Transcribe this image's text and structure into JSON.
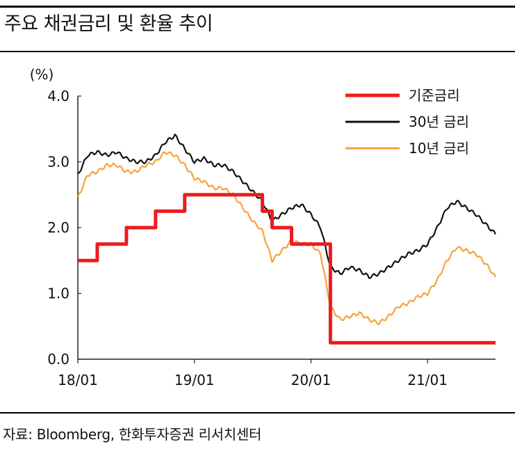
{
  "header": {
    "title": "주요 채권금리 및 환율 추이"
  },
  "footer": {
    "source": "자료: Bloomberg, 한화투자증권 리서치센터"
  },
  "colors": {
    "base_rate": "#ee1c1c",
    "y30": "#111111",
    "y10": "#f7a23c"
  },
  "chart_data": {
    "type": "line",
    "title": "",
    "ylabel": "(%)",
    "ylim": [
      0,
      4
    ],
    "yticks": [
      "0.0",
      "1.0",
      "2.0",
      "3.0",
      "4.0"
    ],
    "xlim": [
      "2018-01",
      "2021-08"
    ],
    "xticks": [
      {
        "label": "18/01",
        "date": "2018-01"
      },
      {
        "label": "19/01",
        "date": "2019-01"
      },
      {
        "label": "20/01",
        "date": "2020-01"
      },
      {
        "label": "21/01",
        "date": "2021-01"
      }
    ],
    "legend_position": "top-right",
    "series": [
      {
        "name": "기준금리",
        "style": "step",
        "points": [
          [
            "2018-01",
            1.5
          ],
          [
            "2018-03",
            1.75
          ],
          [
            "2018-06",
            2.0
          ],
          [
            "2018-09",
            2.25
          ],
          [
            "2018-12",
            2.5
          ],
          [
            "2019-08",
            2.25
          ],
          [
            "2019-09",
            2.0
          ],
          [
            "2019-11",
            1.75
          ],
          [
            "2020-03",
            0.25
          ],
          [
            "2021-08",
            0.25
          ]
        ]
      },
      {
        "name": "30년 금리",
        "style": "line",
        "points": [
          [
            "2018-01",
            2.8
          ],
          [
            "2018-02",
            3.1
          ],
          [
            "2018-03",
            3.15
          ],
          [
            "2018-04",
            3.1
          ],
          [
            "2018-05",
            3.15
          ],
          [
            "2018-06",
            3.05
          ],
          [
            "2018-07",
            3.0
          ],
          [
            "2018-08",
            3.0
          ],
          [
            "2018-09",
            3.1
          ],
          [
            "2018-10",
            3.3
          ],
          [
            "2018-11",
            3.4
          ],
          [
            "2018-12",
            3.2
          ],
          [
            "2019-01",
            3.0
          ],
          [
            "2019-02",
            3.05
          ],
          [
            "2019-03",
            2.95
          ],
          [
            "2019-04",
            2.95
          ],
          [
            "2019-05",
            2.85
          ],
          [
            "2019-06",
            2.7
          ],
          [
            "2019-07",
            2.55
          ],
          [
            "2019-08",
            2.4
          ],
          [
            "2019-09",
            2.1
          ],
          [
            "2019-10",
            2.2
          ],
          [
            "2019-11",
            2.3
          ],
          [
            "2019-12",
            2.35
          ],
          [
            "2020-01",
            2.2
          ],
          [
            "2020-02",
            2.0
          ],
          [
            "2020-03",
            1.4
          ],
          [
            "2020-04",
            1.3
          ],
          [
            "2020-05",
            1.4
          ],
          [
            "2020-06",
            1.35
          ],
          [
            "2020-07",
            1.25
          ],
          [
            "2020-08",
            1.3
          ],
          [
            "2020-09",
            1.4
          ],
          [
            "2020-10",
            1.5
          ],
          [
            "2020-11",
            1.6
          ],
          [
            "2020-12",
            1.65
          ],
          [
            "2021-01",
            1.75
          ],
          [
            "2021-02",
            2.0
          ],
          [
            "2021-03",
            2.3
          ],
          [
            "2021-04",
            2.4
          ],
          [
            "2021-05",
            2.3
          ],
          [
            "2021-06",
            2.2
          ],
          [
            "2021-07",
            2.05
          ],
          [
            "2021-08",
            1.9
          ]
        ]
      },
      {
        "name": "10년 금리",
        "style": "line",
        "points": [
          [
            "2018-01",
            2.45
          ],
          [
            "2018-02",
            2.8
          ],
          [
            "2018-03",
            2.85
          ],
          [
            "2018-04",
            2.95
          ],
          [
            "2018-05",
            2.95
          ],
          [
            "2018-06",
            2.85
          ],
          [
            "2018-07",
            2.85
          ],
          [
            "2018-08",
            2.95
          ],
          [
            "2018-09",
            3.0
          ],
          [
            "2018-10",
            3.15
          ],
          [
            "2018-11",
            3.1
          ],
          [
            "2018-12",
            2.95
          ],
          [
            "2019-01",
            2.75
          ],
          [
            "2019-02",
            2.7
          ],
          [
            "2019-03",
            2.6
          ],
          [
            "2019-04",
            2.6
          ],
          [
            "2019-05",
            2.5
          ],
          [
            "2019-06",
            2.3
          ],
          [
            "2019-07",
            2.1
          ],
          [
            "2019-08",
            1.95
          ],
          [
            "2019-09",
            1.5
          ],
          [
            "2019-10",
            1.65
          ],
          [
            "2019-11",
            1.8
          ],
          [
            "2019-12",
            1.75
          ],
          [
            "2020-01",
            1.75
          ],
          [
            "2020-02",
            1.6
          ],
          [
            "2020-03",
            0.8
          ],
          [
            "2020-04",
            0.6
          ],
          [
            "2020-05",
            0.65
          ],
          [
            "2020-06",
            0.7
          ],
          [
            "2020-07",
            0.6
          ],
          [
            "2020-08",
            0.55
          ],
          [
            "2020-09",
            0.65
          ],
          [
            "2020-10",
            0.8
          ],
          [
            "2020-11",
            0.85
          ],
          [
            "2020-12",
            0.95
          ],
          [
            "2021-01",
            1.0
          ],
          [
            "2021-02",
            1.2
          ],
          [
            "2021-03",
            1.5
          ],
          [
            "2021-04",
            1.7
          ],
          [
            "2021-05",
            1.65
          ],
          [
            "2021-06",
            1.6
          ],
          [
            "2021-07",
            1.45
          ],
          [
            "2021-08",
            1.25
          ]
        ]
      }
    ]
  }
}
